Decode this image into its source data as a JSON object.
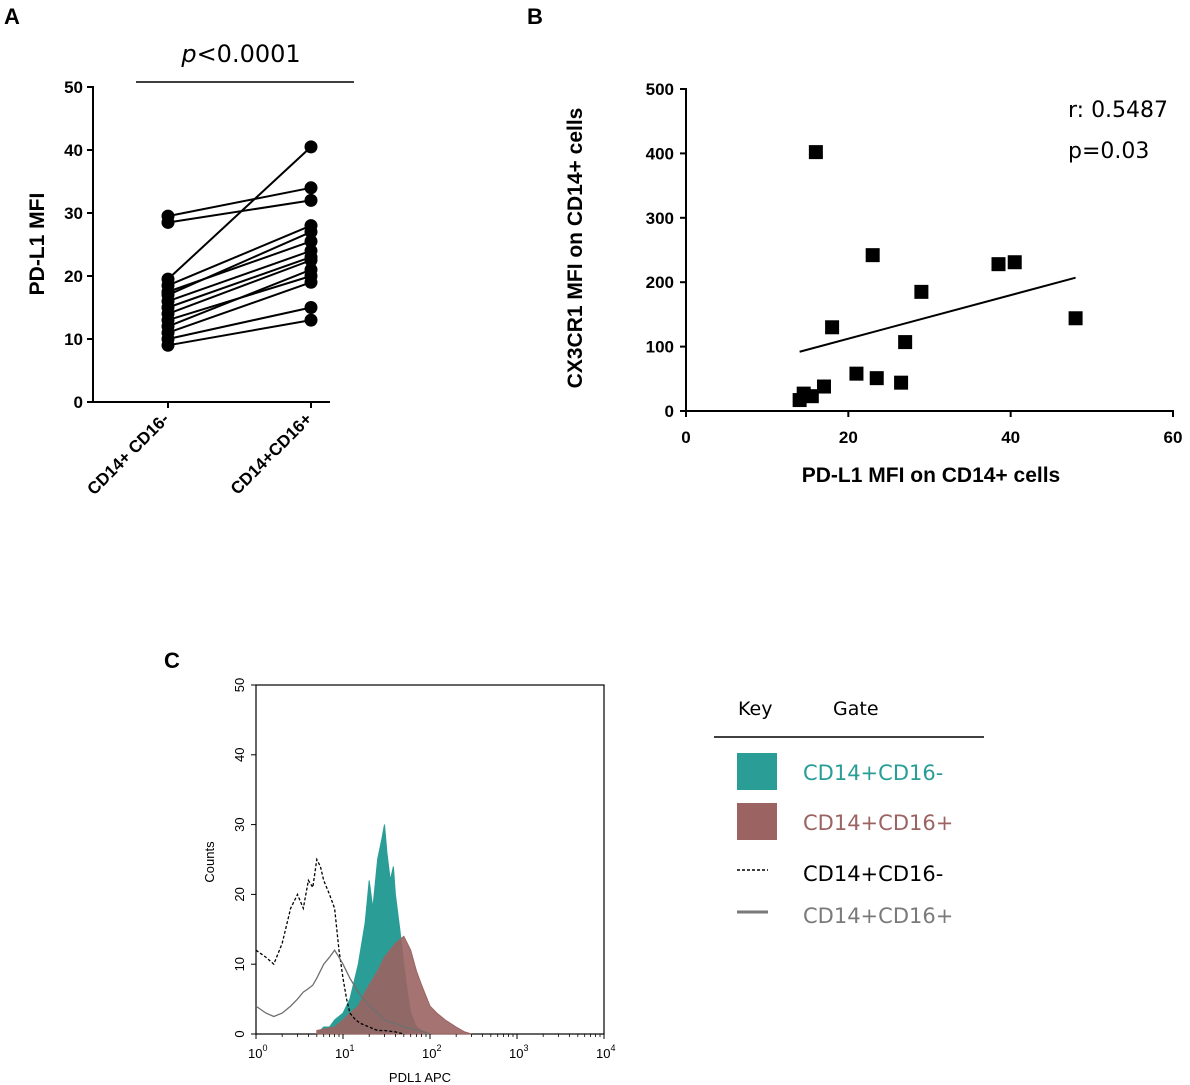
{
  "panels": {
    "a": "A",
    "b": "B",
    "c": "C"
  },
  "chart_data": [
    {
      "id": "panel-a",
      "type": "line",
      "title": "",
      "annotation_italic": "p",
      "annotation_rest": "<0.0001",
      "ylabel": "PD-L1 MFI",
      "xlabel": "",
      "categories": [
        "CD14+ CD16-",
        "CD14+CD16+"
      ],
      "ylim": [
        0,
        50
      ],
      "yticks": [
        0,
        10,
        20,
        30,
        40,
        50
      ],
      "pairs": [
        [
          29.5,
          34.0
        ],
        [
          28.5,
          32.0
        ],
        [
          19.5,
          40.5
        ],
        [
          18.5,
          28.0
        ],
        [
          17.5,
          25.5
        ],
        [
          17.0,
          27.0
        ],
        [
          16.0,
          24.0
        ],
        [
          15.0,
          23.0
        ],
        [
          14.0,
          22.5
        ],
        [
          13.0,
          20.0
        ],
        [
          12.0,
          21.0
        ],
        [
          11.0,
          19.0
        ],
        [
          10.0,
          15.0
        ],
        [
          9.0,
          13.0
        ]
      ]
    },
    {
      "id": "panel-b",
      "type": "scatter",
      "xlabel": "PD-L1 MFI on CD14+ cells",
      "ylabel": "CX3CR1 MFI on CD14+ cells",
      "xlim": [
        0,
        60
      ],
      "ylim": [
        0,
        500
      ],
      "xticks": [
        0,
        20,
        40,
        60
      ],
      "yticks": [
        0,
        100,
        200,
        300,
        400,
        500
      ],
      "annotation_r": "r: 0.5487",
      "annotation_p": "p=0.03",
      "points": [
        [
          14,
          17
        ],
        [
          14.5,
          27
        ],
        [
          15.5,
          23
        ],
        [
          16,
          402
        ],
        [
          17,
          38
        ],
        [
          18,
          130
        ],
        [
          21,
          58
        ],
        [
          23,
          242
        ],
        [
          23.5,
          51
        ],
        [
          26.5,
          44
        ],
        [
          27,
          107
        ],
        [
          29,
          185
        ],
        [
          38.5,
          228
        ],
        [
          40.5,
          231
        ],
        [
          48,
          144
        ]
      ],
      "regression": {
        "x0": 14,
        "y0": 92,
        "x1": 48,
        "y1": 207
      }
    },
    {
      "id": "panel-c",
      "type": "area",
      "xlabel": "PDL1 APC",
      "ylabel": "Counts",
      "x_scale": "log",
      "xlim": [
        1,
        10000
      ],
      "ylim": [
        0,
        50
      ],
      "xtick_base": "10",
      "xtick_exponents": [
        "0",
        "1",
        "2",
        "3",
        "4"
      ],
      "yticks": [
        0,
        10,
        20,
        30,
        40,
        50
      ],
      "series": [
        {
          "name": "CD14+CD16-",
          "style": "filled",
          "color": "#2a9d96",
          "x": [
            5,
            6,
            7,
            8,
            10,
            12,
            15,
            18,
            20,
            22,
            25,
            28,
            30,
            32,
            35,
            38,
            40,
            45,
            50,
            55,
            60,
            70,
            80,
            100
          ],
          "y": [
            0,
            1,
            1,
            2,
            3,
            5,
            10,
            16,
            22,
            18,
            25,
            28,
            30,
            26,
            22,
            24,
            20,
            15,
            10,
            6,
            3,
            1,
            0.5,
            0
          ]
        },
        {
          "name": "CD14+CD16+",
          "style": "filled",
          "color": "#9b6462",
          "x": [
            5,
            8,
            10,
            12,
            15,
            18,
            20,
            25,
            30,
            40,
            50,
            60,
            70,
            80,
            100,
            120,
            150,
            200,
            250,
            300
          ],
          "y": [
            0.5,
            1,
            2,
            3,
            4,
            6,
            7,
            9,
            11,
            13,
            14,
            12,
            9,
            7,
            4,
            3,
            2,
            1,
            0.3,
            0
          ]
        },
        {
          "name": "CD14+CD16-",
          "style": "dashed",
          "color": "#000000",
          "x": [
            1,
            1.3,
            1.6,
            2,
            2.5,
            3,
            3.5,
            4,
            4.5,
            5,
            5.5,
            6,
            7,
            8,
            9,
            10,
            11,
            12,
            14,
            16,
            20,
            25,
            30,
            40,
            50
          ],
          "y": [
            12,
            11,
            10,
            13,
            18,
            20,
            18,
            22,
            21,
            25,
            24,
            22,
            20,
            18,
            12,
            8,
            5,
            3,
            2,
            1.5,
            1,
            0.5,
            0.5,
            0.3,
            0
          ]
        },
        {
          "name": "CD14+CD16+",
          "style": "solid",
          "color": "#6f6f6f",
          "x": [
            1,
            1.3,
            1.6,
            2,
            2.5,
            3,
            3.5,
            4,
            4.5,
            5,
            6,
            7,
            8,
            9,
            10,
            12,
            15,
            20,
            25,
            30,
            40,
            50,
            60,
            80,
            100
          ],
          "y": [
            4,
            3,
            2.5,
            3,
            4,
            5,
            6,
            6.5,
            7,
            8,
            10,
            11,
            12,
            11,
            10,
            8,
            6,
            4,
            3,
            2,
            1.5,
            1,
            0.8,
            0.4,
            0
          ]
        }
      ]
    }
  ],
  "legend": {
    "key_header": "Key",
    "gate_header": "Gate",
    "items": [
      {
        "label": "CD14+CD16-",
        "symbol": "filled-box",
        "color": "#2a9d96"
      },
      {
        "label": "CD14+CD16+",
        "symbol": "filled-box",
        "color": "#9b6462"
      },
      {
        "label": "CD14+CD16-",
        "symbol": "dashed-line",
        "color": "#000000"
      },
      {
        "label": "CD14+CD16+",
        "symbol": "solid-line",
        "color": "#7a7a7a"
      }
    ]
  }
}
